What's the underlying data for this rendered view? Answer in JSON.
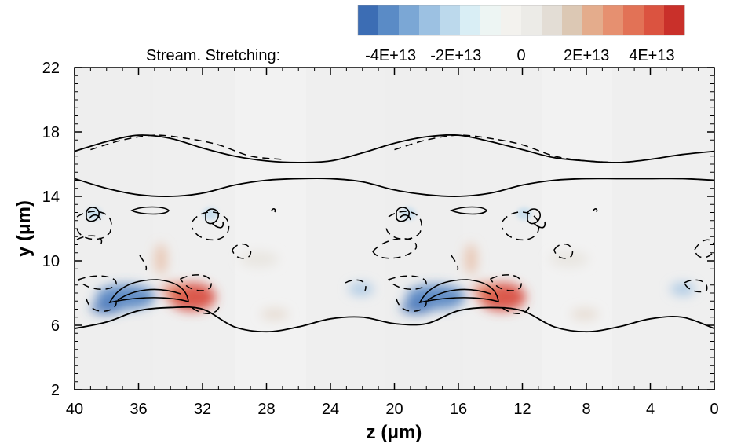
{
  "chart_data": {
    "type": "heatmap",
    "xlabel": "z (μm)",
    "ylabel": "y (μm)",
    "xlim": [
      40,
      0
    ],
    "ylim": [
      2,
      22
    ],
    "x_ticks": [
      "40",
      "36",
      "32",
      "28",
      "24",
      "20",
      "16",
      "12",
      "8",
      "4",
      "0"
    ],
    "y_ticks": [
      "2",
      "6",
      "10",
      "14",
      "18",
      "22"
    ],
    "legend": {
      "label": "Stream. Stretching:",
      "ticks": [
        "-4E+13",
        "-2E+13",
        "0",
        "2E+13",
        "4E+13"
      ],
      "range": [
        -50000000000000,
        50000000000000
      ],
      "colors": [
        "#3c6db4",
        "#5a8bc6",
        "#7ba7d5",
        "#9cc1e2",
        "#bcd9ec",
        "#d9eef5",
        "#edf5f3",
        "#f3f2ee",
        "#ecebe7",
        "#e3ddd5",
        "#dcc8b4",
        "#e4ac8c",
        "#e69070",
        "#e27256",
        "#db5340",
        "#c9302a"
      ]
    },
    "placement": "legend top-right above plot",
    "solid_contours": [
      {
        "z": [
          40,
          38,
          36,
          34,
          32,
          30,
          28,
          26,
          24,
          22,
          20,
          18,
          16,
          14,
          12,
          10,
          8,
          6,
          4,
          2,
          0
        ],
        "y": [
          16.8,
          17.4,
          17.8,
          17.6,
          17.0,
          16.5,
          16.2,
          16.1,
          16.2,
          16.7,
          17.3,
          17.7,
          17.8,
          17.4,
          16.9,
          16.4,
          16.2,
          16.1,
          16.3,
          16.6,
          16.8
        ]
      },
      {
        "z": [
          40,
          38,
          36,
          34,
          32,
          30,
          28,
          26,
          24,
          22,
          20,
          18,
          16,
          14,
          12,
          10,
          8,
          6,
          4,
          2,
          0
        ],
        "y": [
          15.1,
          14.5,
          14.1,
          14.0,
          14.2,
          14.7,
          15.0,
          15.1,
          15.1,
          14.9,
          14.4,
          14.1,
          14.0,
          14.2,
          14.7,
          15.0,
          15.1,
          15.1,
          15.1,
          15.1,
          15.0
        ]
      },
      {
        "z": [
          40,
          38,
          36,
          34,
          32,
          30,
          28,
          26,
          24,
          22,
          20,
          18,
          16,
          14,
          12,
          10,
          8,
          6,
          4,
          2,
          0
        ],
        "y": [
          5.8,
          6.2,
          6.9,
          7.1,
          7.0,
          5.9,
          5.6,
          5.9,
          6.4,
          6.5,
          6.1,
          6.1,
          6.9,
          7.1,
          6.9,
          5.9,
          5.6,
          5.9,
          6.4,
          6.5,
          5.8
        ]
      }
    ],
    "dashed_contours": [
      {
        "z": [
          39,
          37,
          35,
          33,
          31,
          29,
          27
        ],
        "y": [
          16.9,
          17.5,
          17.8,
          17.6,
          17.2,
          16.5,
          16.3
        ]
      },
      {
        "z": [
          20,
          18,
          16,
          14,
          12,
          10,
          8,
          6
        ],
        "y": [
          16.9,
          17.5,
          17.8,
          17.6,
          17.2,
          16.5,
          16.2,
          16.1
        ]
      }
    ]
  }
}
